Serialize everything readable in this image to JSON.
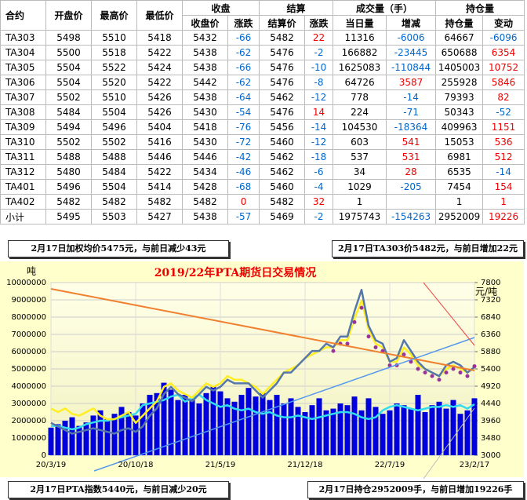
{
  "table": {
    "header_top": [
      "合约",
      "开盘价",
      "最高价",
      "最低价",
      "收盘",
      "结算",
      "成交量（手）",
      "持仓量"
    ],
    "header_sub": [
      "收盘价",
      "涨跌",
      "结算价",
      "涨跌",
      "当日量",
      "增减",
      "持仓量",
      "变动"
    ],
    "rows": [
      [
        "TA303",
        5498,
        5510,
        5418,
        5432,
        -66,
        5482,
        22,
        11316,
        -6006,
        64667,
        -6096
      ],
      [
        "TA304",
        5500,
        5518,
        5422,
        5438,
        -62,
        5476,
        -2,
        166882,
        -23445,
        650688,
        6354
      ],
      [
        "TA305",
        5504,
        5522,
        5424,
        5438,
        -66,
        5476,
        -10,
        1625083,
        -110844,
        1405003,
        10752
      ],
      [
        "TA306",
        5504,
        5520,
        5422,
        5442,
        -62,
        5476,
        -8,
        64726,
        3587,
        255928,
        5846
      ],
      [
        "TA307",
        5502,
        5510,
        5426,
        5438,
        -64,
        5462,
        -12,
        778,
        -14,
        79393,
        82
      ],
      [
        "TA308",
        5484,
        5504,
        5426,
        5430,
        -54,
        5476,
        14,
        224,
        -71,
        50343,
        -52
      ],
      [
        "TA309",
        5494,
        5496,
        5404,
        5418,
        -76,
        5456,
        -14,
        104530,
        -18364,
        409963,
        1151
      ],
      [
        "TA310",
        5502,
        5502,
        5416,
        5430,
        -72,
        5460,
        -12,
        603,
        541,
        15053,
        536
      ],
      [
        "TA311",
        5488,
        5488,
        5446,
        5446,
        -42,
        5462,
        -18,
        537,
        531,
        6981,
        512
      ],
      [
        "TA312",
        5480,
        5484,
        5422,
        5434,
        -46,
        5462,
        -6,
        34,
        28,
        6535,
        -14
      ],
      [
        "TA401",
        5496,
        5504,
        5414,
        5428,
        -68,
        5460,
        -4,
        1029,
        -205,
        7454,
        154
      ],
      [
        "TA402",
        5482,
        5482,
        5482,
        5482,
        0,
        5482,
        32,
        1,
        null,
        1,
        1
      ],
      [
        "小计",
        5495,
        5503,
        5427,
        5438,
        -57,
        5469,
        -2,
        1975743,
        -154263,
        2952009,
        19226
      ]
    ]
  },
  "notes": [
    "2月17日加权均价5475元，与前日减少43元",
    "2月17日TA303价5482元，与前日增加22元",
    "2月17日PTA指数5440元，与前日减少20元",
    "2月17日持仓2952009手，与前日增加19226手"
  ],
  "chart_data": {
    "type": "combo",
    "title": "2019/22年PTA期货日交易情况",
    "y_label": "吨",
    "y2_label": "元/吨",
    "categories": [
      "20/3/19",
      null,
      null,
      null,
      null,
      null,
      null,
      null,
      null,
      null,
      null,
      null,
      "20/10/18",
      null,
      null,
      null,
      null,
      null,
      null,
      null,
      null,
      null,
      null,
      null,
      "21/5/19",
      null,
      null,
      null,
      null,
      null,
      null,
      null,
      null,
      null,
      null,
      null,
      "21/12/18",
      null,
      null,
      null,
      null,
      null,
      null,
      null,
      null,
      null,
      null,
      null,
      "22/7/19",
      null,
      null,
      null,
      null,
      null,
      null,
      null,
      null,
      null,
      null,
      null,
      "23/2/17"
    ],
    "ylim": [
      0,
      10000000
    ],
    "yticks": [
      0,
      1000000,
      2000000,
      3000000,
      4000000,
      5000000,
      6000000,
      7000000,
      8000000,
      9000000,
      10000000
    ],
    "y2lim": [
      3000,
      7800
    ],
    "y2ticks": [
      3000,
      3480,
      3960,
      4440,
      4920,
      5400,
      5880,
      6360,
      6840,
      7320,
      7800
    ],
    "grid": true,
    "series": [
      {
        "type": "bar",
        "color": "#0000dd",
        "values": [
          1600000,
          1800000,
          2000000,
          2200000,
          1700000,
          1900000,
          2300000,
          2600000,
          2100000,
          2400000,
          2800000,
          2500000,
          2300000,
          3000000,
          3500000,
          3600000,
          4200000,
          3800000,
          3200000,
          3500000,
          3300000,
          3000000,
          3600000,
          4000000,
          3700000,
          3300000,
          3100000,
          3500000,
          3900000,
          3400000,
          3600000,
          3200000,
          3500000,
          3000000,
          3300000,
          2800000,
          2500000,
          2900000,
          3300000,
          2600000,
          2700000,
          3000000,
          2900000,
          3400000,
          2600000,
          3300000,
          2800000,
          2400000,
          2600000,
          3000000,
          2900000,
          2700000,
          3500000,
          2500000,
          2900000,
          3100000,
          2700000,
          3200000,
          2400000,
          2600000,
          3300000
        ]
      },
      {
        "type": "line",
        "color": "#33ddee",
        "values": [
          1700000,
          1700000,
          1600000,
          1500000,
          1600000,
          1800000,
          1900000,
          2000000,
          2000000,
          2100000,
          2200000,
          2300000,
          2400000,
          2900000,
          3000000,
          3100000,
          3200000,
          3400000,
          3500000,
          3100000,
          3300000,
          3500000,
          3200000,
          3000000,
          2800000,
          2900000,
          2700000,
          2600000,
          2700000,
          2500000,
          2400000,
          2500000,
          2300000,
          2200000,
          2200000,
          2300000,
          2200000,
          2100000,
          2200000,
          2300000,
          2400000,
          2500000,
          2500000,
          2400000,
          2200000,
          2100000,
          2200000,
          2600000,
          2800000,
          2900000,
          2800000,
          2700000,
          2600000,
          2700000,
          2800000,
          2800000,
          2900000,
          2800000,
          2900000,
          2700000,
          2950000
        ]
      },
      {
        "type": "line",
        "axis": "y2",
        "color": "#ffee22",
        "values": [
          4300,
          4200,
          4300,
          4150,
          4100,
          4200,
          4300,
          4100,
          4000,
          4000,
          4100,
          4200,
          3900,
          4100,
          4300,
          4500,
          4900,
          5000,
          4800,
          4700,
          4600,
          4800,
          5000,
          4900,
          5000,
          5200,
          5100,
          5100,
          5000,
          4900,
          4700,
          4900,
          5100,
          5300,
          5400,
          5500,
          5700,
          5800,
          5900,
          6000,
          6000,
          6200,
          6200,
          6800,
          7300,
          6500,
          6100,
          6000,
          5600,
          5600,
          6000,
          5800,
          5500,
          5400,
          5300,
          5200,
          5400,
          5500,
          5400,
          5300,
          5440
        ]
      },
      {
        "type": "line",
        "axis": "y2",
        "color": "#5577aa",
        "values": [
          3900,
          3800,
          3700,
          3600,
          3650,
          3700,
          3750,
          3700,
          3650,
          3600,
          3700,
          3750,
          3650,
          3800,
          4100,
          4300,
          4700,
          4900,
          4700,
          4600,
          4500,
          4700,
          4900,
          4800,
          4900,
          5100,
          5000,
          5000,
          5000,
          4800,
          4600,
          4800,
          5000,
          5300,
          5300,
          5500,
          5700,
          5900,
          5900,
          6100,
          6000,
          6300,
          6300,
          7000,
          7600,
          6600,
          6200,
          6100,
          5600,
          5700,
          6200,
          5900,
          5600,
          5400,
          5300,
          5200,
          5500,
          5600,
          5500,
          5300,
          5450
        ]
      },
      {
        "type": "scatter",
        "axis": "y2",
        "color": "#993399",
        "values": [
          null,
          null,
          null,
          null,
          null,
          null,
          null,
          null,
          null,
          null,
          null,
          null,
          null,
          null,
          null,
          null,
          null,
          null,
          null,
          null,
          null,
          null,
          null,
          null,
          null,
          null,
          null,
          null,
          null,
          null,
          null,
          null,
          null,
          null,
          null,
          null,
          null,
          null,
          null,
          null,
          5900,
          6100,
          6100,
          6700,
          7100,
          6300,
          6000,
          5900,
          5500,
          5500,
          5800,
          5600,
          5400,
          5300,
          5200,
          5100,
          5300,
          5400,
          5300,
          5200,
          5475
        ]
      }
    ]
  }
}
